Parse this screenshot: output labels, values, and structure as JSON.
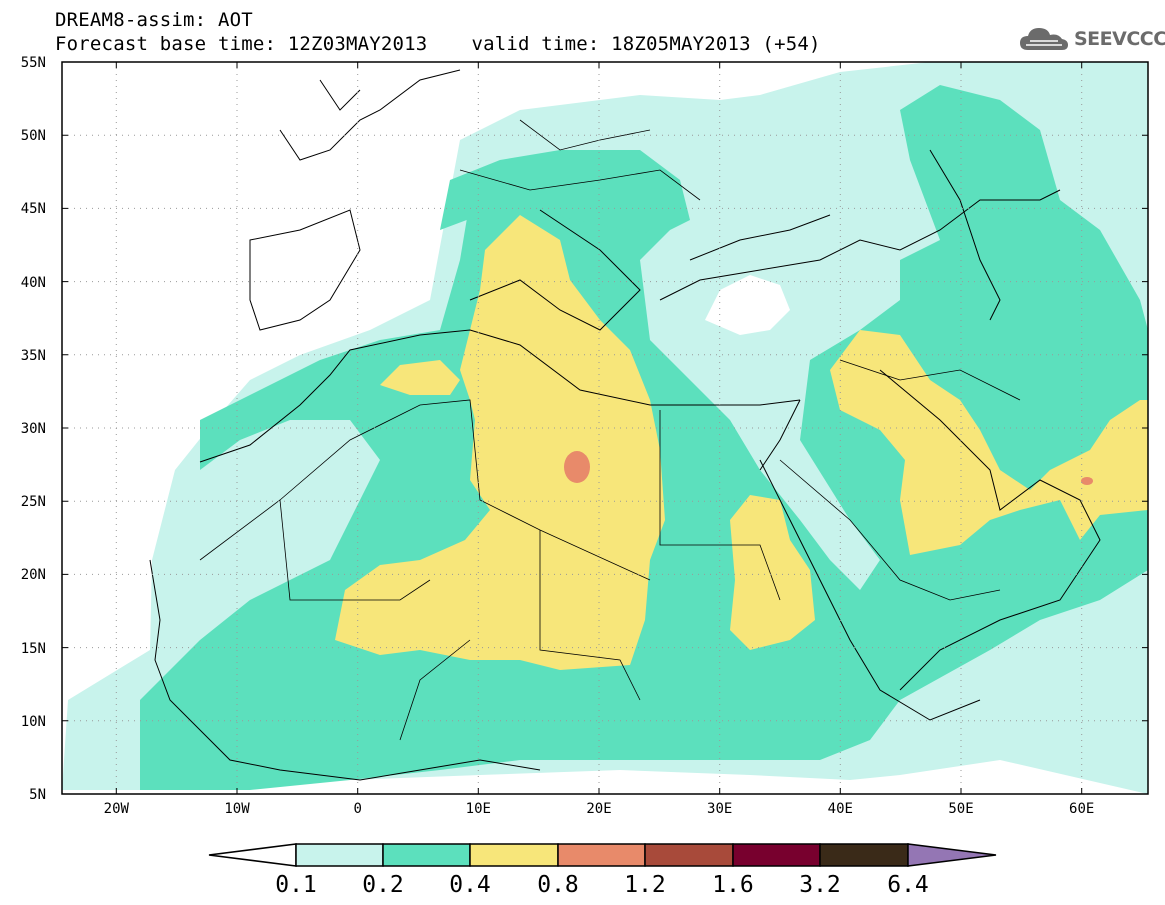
{
  "title": {
    "line1": "DREAM8-assim: AOT",
    "line2_base": "Forecast base time: 12Z03MAY2013",
    "line2_valid": "valid time: 18Z05MAY2013 (+54)"
  },
  "logo": {
    "text": "SEEVCCC",
    "icon": "cloud-logo-icon",
    "color": "#6b6b6b"
  },
  "map": {
    "lat_labels": [
      "55N",
      "50N",
      "45N",
      "40N",
      "35N",
      "30N",
      "25N",
      "20N",
      "15N",
      "10N",
      "5N"
    ],
    "lon_labels": [
      "20W",
      "10W",
      "0",
      "10E",
      "20E",
      "30E",
      "40E",
      "50E",
      "60E"
    ],
    "lat_range": [
      5,
      55
    ],
    "lon_range": [
      -25,
      65
    ],
    "grid": "dotted"
  },
  "legend": {
    "labels": [
      "0.1",
      "0.2",
      "0.4",
      "0.8",
      "1.2",
      "1.6",
      "3.2",
      "6.4"
    ],
    "colors": {
      "lowest": "#ffffff",
      "c1": "#c8f3ec",
      "c2": "#5ce0bd",
      "c3": "#f7e67a",
      "c4": "#e88a6a",
      "c5": "#a84a3a",
      "c6": "#78002e",
      "c7": "#3a2a18",
      "highest": "#9476b4"
    }
  }
}
